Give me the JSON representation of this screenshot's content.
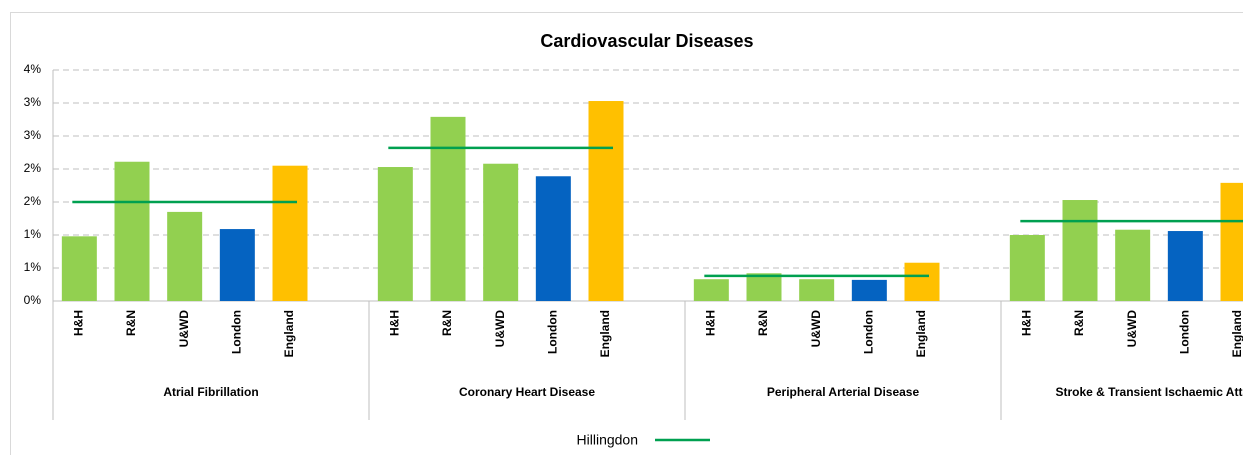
{
  "chart_data": {
    "type": "grouped-bar",
    "title": "Cardiovascular Diseases",
    "ylim": [
      0,
      3.5
    ],
    "yticks": [
      {
        "value": 0,
        "label": "0%"
      },
      {
        "value": 0.5,
        "label": "1%"
      },
      {
        "value": 1,
        "label": "1%"
      },
      {
        "value": 1.5,
        "label": "2%"
      },
      {
        "value": 2,
        "label": "2%"
      },
      {
        "value": 2.5,
        "label": "3%"
      },
      {
        "value": 3,
        "label": "3%"
      },
      {
        "value": 3.5,
        "label": "4%"
      }
    ],
    "grid": true,
    "bar_colors": [
      "#92d050",
      "#92d050",
      "#92d050",
      "#0563c1",
      "#ffc000"
    ],
    "groups": [
      {
        "name": "Atrial Fibrillation",
        "categories": [
          "H&H",
          "R&N",
          "U&WD",
          "London",
          "England"
        ],
        "values": [
          0.98,
          2.11,
          1.35,
          1.09,
          2.05
        ]
      },
      {
        "name": "Coronary Heart Disease",
        "categories": [
          "H&H",
          "R&N",
          "U&WD",
          "London",
          "England"
        ],
        "values": [
          2.03,
          2.79,
          2.08,
          1.89,
          3.03
        ]
      },
      {
        "name": "Peripheral Arterial Disease",
        "categories": [
          "H&H",
          "R&N",
          "U&WD",
          "London",
          "England"
        ],
        "values": [
          0.33,
          0.42,
          0.33,
          0.32,
          0.58
        ]
      },
      {
        "name": "Stroke & Transient Ischaemic Attack",
        "categories": [
          "H&H",
          "R&N",
          "U&WD",
          "London",
          "England"
        ],
        "values": [
          1.0,
          1.53,
          1.08,
          1.06,
          1.79
        ]
      }
    ],
    "series": [
      {
        "name": "Hillingdon",
        "color": "#00a050",
        "values": [
          1.5,
          2.32,
          0.38,
          1.21
        ]
      }
    ]
  }
}
